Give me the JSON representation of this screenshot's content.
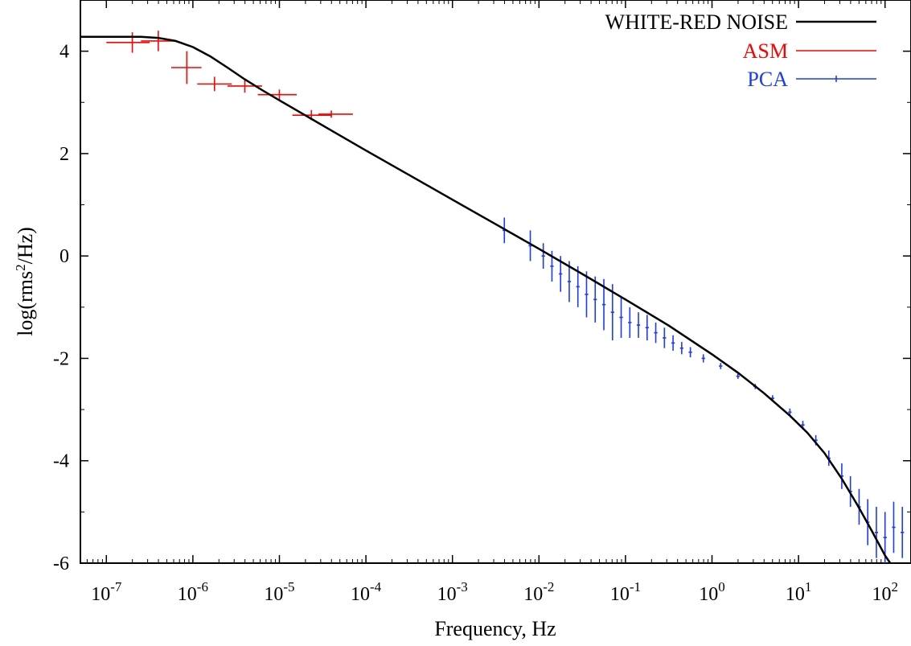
{
  "chart_data": {
    "type": "line",
    "title": "",
    "xlabel": "Frequency, Hz",
    "ylabel_parts": [
      "log(rms",
      "2",
      "/Hz)"
    ],
    "x_scale": "log10",
    "xlim_log10": [
      -7.3,
      2.3
    ],
    "ylim": [
      -6,
      5
    ],
    "x_ticks": [
      {
        "exp": -7,
        "base": "10",
        "power": "-7"
      },
      {
        "exp": -6,
        "base": "10",
        "power": "-6"
      },
      {
        "exp": -5,
        "base": "10",
        "power": "-5"
      },
      {
        "exp": -4,
        "base": "10",
        "power": "-4"
      },
      {
        "exp": -3,
        "base": "10",
        "power": "-3"
      },
      {
        "exp": -2,
        "base": "10",
        "power": "-2"
      },
      {
        "exp": -1,
        "base": "10",
        "power": "-1"
      },
      {
        "exp": 0,
        "base": "10",
        "power": "0"
      },
      {
        "exp": 1,
        "base": "10",
        "power": "1"
      },
      {
        "exp": 2,
        "base": "10",
        "power": "2"
      }
    ],
    "y_ticks": [
      {
        "value": -6,
        "label": "-6"
      },
      {
        "value": -4,
        "label": "-4"
      },
      {
        "value": -2,
        "label": "-2"
      },
      {
        "value": 0,
        "label": "0"
      },
      {
        "value": 2,
        "label": "2"
      },
      {
        "value": 4,
        "label": "4"
      }
    ],
    "legend_position": "top-right",
    "series": [
      {
        "name": "WHITE-RED NOISE",
        "color": "#000000",
        "kind": "model",
        "points": [
          [
            -7.3,
            4.28
          ],
          [
            -6.6,
            4.28
          ],
          [
            -6.4,
            4.26
          ],
          [
            -6.2,
            4.2
          ],
          [
            -6.0,
            4.08
          ],
          [
            -5.8,
            3.9
          ],
          [
            -5.6,
            3.68
          ],
          [
            -5.4,
            3.45
          ],
          [
            -5.2,
            3.24
          ],
          [
            -5.0,
            3.04
          ],
          [
            -4.5,
            2.55
          ],
          [
            -4.0,
            2.06
          ],
          [
            -3.5,
            1.58
          ],
          [
            -3.0,
            1.1
          ],
          [
            -2.5,
            0.62
          ],
          [
            -2.0,
            0.14
          ],
          [
            -1.5,
            -0.35
          ],
          [
            -1.0,
            -0.85
          ],
          [
            -0.5,
            -1.36
          ],
          [
            0.0,
            -1.92
          ],
          [
            0.3,
            -2.28
          ],
          [
            0.6,
            -2.68
          ],
          [
            0.9,
            -3.12
          ],
          [
            1.1,
            -3.45
          ],
          [
            1.3,
            -3.85
          ],
          [
            1.5,
            -4.35
          ],
          [
            1.7,
            -4.92
          ],
          [
            1.85,
            -5.38
          ],
          [
            2.0,
            -5.85
          ],
          [
            2.06,
            -6.0
          ]
        ]
      },
      {
        "name": "ASM",
        "color": "#ff0000",
        "kind": "errorbar",
        "points": [
          {
            "x": -6.7,
            "y": 4.17,
            "xlo": -7.0,
            "xhi": -6.5,
            "yerr": 0.2
          },
          {
            "x": -6.4,
            "y": 4.2,
            "xlo": -6.6,
            "xhi": -6.2,
            "yerr": 0.2
          },
          {
            "x": -6.07,
            "y": 3.68,
            "xlo": -6.25,
            "xhi": -5.9,
            "yerr": 0.32
          },
          {
            "x": -5.75,
            "y": 3.36,
            "xlo": -5.95,
            "xhi": -5.55,
            "yerr": 0.14
          },
          {
            "x": -5.4,
            "y": 3.32,
            "xlo": -5.6,
            "xhi": -5.2,
            "yerr": 0.13
          },
          {
            "x": -5.0,
            "y": 3.15,
            "xlo": -5.25,
            "xhi": -4.8,
            "yerr": 0.1
          },
          {
            "x": -4.63,
            "y": 2.75,
            "xlo": -4.85,
            "xhi": -4.4,
            "yerr": 0.1
          },
          {
            "x": -4.4,
            "y": 2.77,
            "xlo": -4.55,
            "xhi": -4.15,
            "yerr": 0.07
          }
        ]
      },
      {
        "name": "PCA",
        "color": "#1a3aff",
        "kind": "errorbar",
        "points": [
          {
            "x": -2.4,
            "y": 0.5,
            "xlo": -2.42,
            "xhi": -2.38,
            "yerr": 0.25
          },
          {
            "x": -2.1,
            "y": 0.2,
            "xlo": -2.12,
            "xhi": -2.08,
            "yerr": 0.3
          },
          {
            "x": -1.95,
            "y": 0.0,
            "xlo": -1.97,
            "xhi": -1.93,
            "yerr": 0.25
          },
          {
            "x": -1.85,
            "y": -0.2,
            "xlo": -1.87,
            "xhi": -1.83,
            "yerr": 0.3
          },
          {
            "x": -1.75,
            "y": -0.35,
            "xlo": -1.77,
            "xhi": -1.73,
            "yerr": 0.35
          },
          {
            "x": -1.65,
            "y": -0.5,
            "xlo": -1.67,
            "xhi": -1.63,
            "yerr": 0.4
          },
          {
            "x": -1.55,
            "y": -0.6,
            "xlo": -1.57,
            "xhi": -1.53,
            "yerr": 0.4
          },
          {
            "x": -1.45,
            "y": -0.75,
            "xlo": -1.47,
            "xhi": -1.43,
            "yerr": 0.45
          },
          {
            "x": -1.35,
            "y": -0.85,
            "xlo": -1.37,
            "xhi": -1.33,
            "yerr": 0.45
          },
          {
            "x": -1.25,
            "y": -0.95,
            "xlo": -1.27,
            "xhi": -1.23,
            "yerr": 0.5
          },
          {
            "x": -1.15,
            "y": -1.1,
            "xlo": -1.17,
            "xhi": -1.13,
            "yerr": 0.55
          },
          {
            "x": -1.05,
            "y": -1.2,
            "xlo": -1.07,
            "xhi": -1.03,
            "yerr": 0.4
          },
          {
            "x": -0.95,
            "y": -1.3,
            "xlo": -0.97,
            "xhi": -0.93,
            "yerr": 0.3
          },
          {
            "x": -0.85,
            "y": -1.35,
            "xlo": -0.87,
            "xhi": -0.83,
            "yerr": 0.25
          },
          {
            "x": -0.75,
            "y": -1.4,
            "xlo": -0.77,
            "xhi": -0.73,
            "yerr": 0.25
          },
          {
            "x": -0.65,
            "y": -1.5,
            "xlo": -0.67,
            "xhi": -0.63,
            "yerr": 0.2
          },
          {
            "x": -0.55,
            "y": -1.6,
            "xlo": -0.57,
            "xhi": -0.53,
            "yerr": 0.2
          },
          {
            "x": -0.45,
            "y": -1.7,
            "xlo": -0.47,
            "xhi": -0.43,
            "yerr": 0.15
          },
          {
            "x": -0.35,
            "y": -1.8,
            "xlo": -0.37,
            "xhi": -0.33,
            "yerr": 0.12
          },
          {
            "x": -0.25,
            "y": -1.88,
            "xlo": -0.27,
            "xhi": -0.23,
            "yerr": 0.1
          },
          {
            "x": -0.1,
            "y": -2.0,
            "xlo": -0.12,
            "xhi": -0.08,
            "yerr": 0.08
          },
          {
            "x": 0.1,
            "y": -2.15,
            "xlo": 0.08,
            "xhi": 0.12,
            "yerr": 0.06
          },
          {
            "x": 0.3,
            "y": -2.35,
            "xlo": 0.28,
            "xhi": 0.32,
            "yerr": 0.05
          },
          {
            "x": 0.5,
            "y": -2.55,
            "xlo": 0.48,
            "xhi": 0.52,
            "yerr": 0.05
          },
          {
            "x": 0.7,
            "y": -2.78,
            "xlo": 0.68,
            "xhi": 0.72,
            "yerr": 0.06
          },
          {
            "x": 0.9,
            "y": -3.05,
            "xlo": 0.88,
            "xhi": 0.92,
            "yerr": 0.07
          },
          {
            "x": 1.05,
            "y": -3.3,
            "xlo": 1.03,
            "xhi": 1.07,
            "yerr": 0.08
          },
          {
            "x": 1.2,
            "y": -3.6,
            "xlo": 1.18,
            "xhi": 1.22,
            "yerr": 0.1
          },
          {
            "x": 1.35,
            "y": -3.95,
            "xlo": 1.33,
            "xhi": 1.37,
            "yerr": 0.15
          },
          {
            "x": 1.5,
            "y": -4.3,
            "xlo": 1.48,
            "xhi": 1.52,
            "yerr": 0.25
          },
          {
            "x": 1.6,
            "y": -4.6,
            "xlo": 1.58,
            "xhi": 1.62,
            "yerr": 0.3
          },
          {
            "x": 1.7,
            "y": -4.9,
            "xlo": 1.68,
            "xhi": 1.72,
            "yerr": 0.35
          },
          {
            "x": 1.8,
            "y": -5.2,
            "xlo": 1.78,
            "xhi": 1.82,
            "yerr": 0.45
          },
          {
            "x": 1.9,
            "y": -5.4,
            "xlo": 1.88,
            "xhi": 1.92,
            "yerr": 0.5
          },
          {
            "x": 2.0,
            "y": -5.5,
            "xlo": 1.98,
            "xhi": 2.02,
            "yerr": 0.5
          },
          {
            "x": 2.1,
            "y": -5.3,
            "xlo": 2.08,
            "xhi": 2.12,
            "yerr": 0.5
          },
          {
            "x": 2.2,
            "y": -5.4,
            "xlo": 2.18,
            "xhi": 2.22,
            "yerr": 0.5
          }
        ]
      }
    ]
  }
}
